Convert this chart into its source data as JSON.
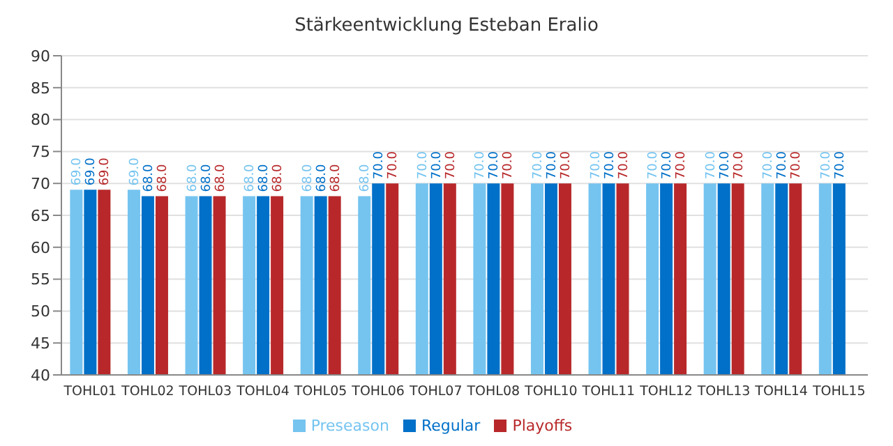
{
  "chart_data": {
    "type": "bar",
    "title": "Stärkeentwicklung Esteban Eralio",
    "categories": [
      "TOHL01",
      "TOHL02",
      "TOHL03",
      "TOHL04",
      "TOHL05",
      "TOHL06",
      "TOHL07",
      "TOHL08",
      "TOHL10",
      "TOHL11",
      "TOHL12",
      "TOHL13",
      "TOHL14",
      "TOHL15"
    ],
    "series": [
      {
        "name": "Preseason",
        "color": "#75c4f0",
        "values": [
          69,
          69,
          68,
          68,
          68,
          68,
          70,
          70,
          70,
          70,
          70,
          70,
          70,
          70
        ],
        "value_labels": [
          "69.0",
          "69.0",
          "68.0",
          "68.0",
          "68.0",
          "68.0",
          "70.0",
          "70.0",
          "70.0",
          "70.0",
          "70.0",
          "70.0",
          "70.0",
          "70.0"
        ]
      },
      {
        "name": "Regular",
        "color": "#0070c8",
        "values": [
          69,
          68,
          68,
          68,
          68,
          70,
          70,
          70,
          70,
          70,
          70,
          70,
          70,
          70
        ],
        "value_labels": [
          "69.0",
          "68.0",
          "68.0",
          "68.0",
          "68.0",
          "70.0",
          "70.0",
          "70.0",
          "70.0",
          "70.0",
          "70.0",
          "70.0",
          "70.0",
          "70.0"
        ]
      },
      {
        "name": "Playoffs",
        "color": "#b8282a",
        "values": [
          69,
          68,
          68,
          68,
          68,
          70,
          70,
          70,
          70,
          70,
          70,
          70,
          70,
          null
        ],
        "value_labels": [
          "69.0",
          "68.0",
          "68.0",
          "68.0",
          "68.0",
          "70.0",
          "70.0",
          "70.0",
          "70.0",
          "70.0",
          "70.0",
          "70.0",
          "70.0",
          null
        ]
      }
    ],
    "ylim": [
      40,
      90
    ],
    "yticks": [
      40,
      45,
      50,
      55,
      60,
      65,
      70,
      75,
      80,
      85,
      90
    ],
    "grid": "y",
    "legend": "bottom"
  }
}
